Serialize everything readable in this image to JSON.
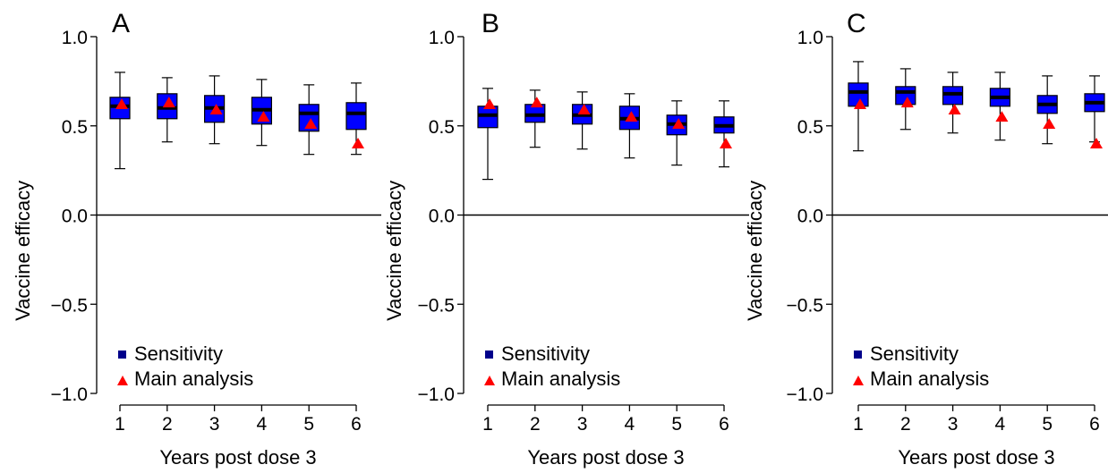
{
  "chart_data": [
    {
      "type": "box",
      "panel_label": "A",
      "xlabel": "Years post dose 3",
      "ylabel": "Vaccine efficacy",
      "ylim": [
        -1.0,
        1.0
      ],
      "yticks": [
        -1.0,
        -0.5,
        0.0,
        0.5,
        1.0
      ],
      "ytick_labels": [
        "−1.0",
        "−0.5",
        "0.0",
        "0.5",
        "1.0"
      ],
      "categories": [
        "1",
        "2",
        "3",
        "4",
        "5",
        "6"
      ],
      "reference_line": 0.0,
      "series": [
        {
          "name": "Sensitivity",
          "marker": "square",
          "color": "#0000ff",
          "boxes": [
            {
              "min": 0.26,
              "q1": 0.54,
              "median": 0.61,
              "q3": 0.66,
              "max": 0.8
            },
            {
              "min": 0.41,
              "q1": 0.54,
              "median": 0.6,
              "q3": 0.68,
              "max": 0.77
            },
            {
              "min": 0.4,
              "q1": 0.52,
              "median": 0.6,
              "q3": 0.67,
              "max": 0.78
            },
            {
              "min": 0.39,
              "q1": 0.51,
              "median": 0.59,
              "q3": 0.66,
              "max": 0.76
            },
            {
              "min": 0.34,
              "q1": 0.47,
              "median": 0.57,
              "q3": 0.62,
              "max": 0.73
            },
            {
              "min": 0.34,
              "q1": 0.48,
              "median": 0.57,
              "q3": 0.63,
              "max": 0.74
            }
          ]
        },
        {
          "name": "Main analysis",
          "marker": "triangle",
          "color": "#ff0000",
          "values": [
            0.62,
            0.63,
            0.59,
            0.55,
            0.51,
            0.4
          ]
        }
      ],
      "legend": "bottom-left"
    },
    {
      "type": "box",
      "panel_label": "B",
      "xlabel": "Years post dose 3",
      "ylabel": "Vaccine efficacy",
      "ylim": [
        -1.0,
        1.0
      ],
      "yticks": [
        -1.0,
        -0.5,
        0.0,
        0.5,
        1.0
      ],
      "ytick_labels": [
        "−1.0",
        "−0.5",
        "0.0",
        "0.5",
        "1.0"
      ],
      "categories": [
        "1",
        "2",
        "3",
        "4",
        "5",
        "6"
      ],
      "reference_line": 0.0,
      "series": [
        {
          "name": "Sensitivity",
          "marker": "square",
          "color": "#0000ff",
          "boxes": [
            {
              "min": 0.2,
              "q1": 0.49,
              "median": 0.56,
              "q3": 0.61,
              "max": 0.71
            },
            {
              "min": 0.38,
              "q1": 0.52,
              "median": 0.56,
              "q3": 0.62,
              "max": 0.7
            },
            {
              "min": 0.37,
              "q1": 0.51,
              "median": 0.56,
              "q3": 0.62,
              "max": 0.69
            },
            {
              "min": 0.32,
              "q1": 0.48,
              "median": 0.54,
              "q3": 0.61,
              "max": 0.68
            },
            {
              "min": 0.28,
              "q1": 0.45,
              "median": 0.51,
              "q3": 0.56,
              "max": 0.64
            },
            {
              "min": 0.27,
              "q1": 0.46,
              "median": 0.5,
              "q3": 0.55,
              "max": 0.64
            }
          ]
        },
        {
          "name": "Main analysis",
          "marker": "triangle",
          "color": "#ff0000",
          "values": [
            0.62,
            0.63,
            0.59,
            0.55,
            0.51,
            0.4
          ]
        }
      ],
      "legend": "bottom-left"
    },
    {
      "type": "box",
      "panel_label": "C",
      "xlabel": "Years post dose 3",
      "ylabel": "Vaccine efficacy",
      "ylim": [
        -1.0,
        1.0
      ],
      "yticks": [
        -1.0,
        -0.5,
        0.0,
        0.5,
        1.0
      ],
      "ytick_labels": [
        "−1.0",
        "−0.5",
        "0.0",
        "0.5",
        "1.0"
      ],
      "categories": [
        "1",
        "2",
        "3",
        "4",
        "5",
        "6"
      ],
      "reference_line": 0.0,
      "series": [
        {
          "name": "Sensitivity",
          "marker": "square",
          "color": "#0000ff",
          "boxes": [
            {
              "min": 0.36,
              "q1": 0.61,
              "median": 0.69,
              "q3": 0.74,
              "max": 0.86
            },
            {
              "min": 0.48,
              "q1": 0.62,
              "median": 0.69,
              "q3": 0.72,
              "max": 0.82
            },
            {
              "min": 0.46,
              "q1": 0.62,
              "median": 0.68,
              "q3": 0.72,
              "max": 0.8
            },
            {
              "min": 0.42,
              "q1": 0.61,
              "median": 0.66,
              "q3": 0.71,
              "max": 0.8
            },
            {
              "min": 0.4,
              "q1": 0.57,
              "median": 0.62,
              "q3": 0.67,
              "max": 0.78
            },
            {
              "min": 0.41,
              "q1": 0.58,
              "median": 0.63,
              "q3": 0.68,
              "max": 0.78
            }
          ]
        },
        {
          "name": "Main analysis",
          "marker": "triangle",
          "color": "#ff0000",
          "values": [
            0.62,
            0.63,
            0.59,
            0.55,
            0.51,
            0.4
          ]
        }
      ],
      "legend": "bottom-left"
    }
  ]
}
